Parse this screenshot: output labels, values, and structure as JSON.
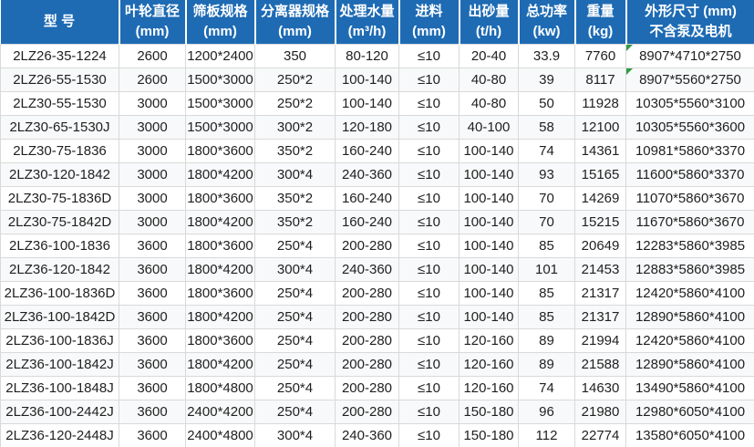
{
  "colors": {
    "header_bg": "#1e6bb4",
    "header_text": "#ffffff",
    "grid_line": "#d9d9d9",
    "body_text": "#1f1f1f",
    "row_alt_bg": "#f8f9fa",
    "comment_marker_green": "#2f9e44"
  },
  "table": {
    "columns": [
      {
        "id": "model",
        "line1": "型 号",
        "line2": ""
      },
      {
        "id": "impeller-diameter",
        "line1": "叶轮直径",
        "line2": "(mm)"
      },
      {
        "id": "screen-plate-size",
        "line1": "筛板规格",
        "line2": "(mm)"
      },
      {
        "id": "separator-size",
        "line1": "分离器规格",
        "line2": "(mm)"
      },
      {
        "id": "water-capacity",
        "line1": "处理水量",
        "line2": "(m³/h)"
      },
      {
        "id": "feed-size",
        "line1": "进料",
        "line2": "(mm)"
      },
      {
        "id": "sand-output",
        "line1": "出砂量",
        "line2": "(t/h)"
      },
      {
        "id": "total-power",
        "line1": "总功率",
        "line2": "(kw)"
      },
      {
        "id": "weight",
        "line1": "重量",
        "line2": "(kg)"
      },
      {
        "id": "overall-dimensions",
        "line1": "外形尺寸 (mm)",
        "line2": "不含泵及电机"
      }
    ],
    "rows": [
      [
        "2LZ26-35-1224",
        "2600",
        "1200*2400",
        "350",
        "80-120",
        "≤10",
        "20-40",
        "33.9",
        "7760",
        "8907*4710*2750"
      ],
      [
        "2LZ26-55-1530",
        "2600",
        "1500*3000",
        "250*2",
        "100-140",
        "≤10",
        "40-80",
        "39",
        "8117",
        "8907*5560*2750"
      ],
      [
        "2LZ30-55-1530",
        "3000",
        "1500*3000",
        "250*2",
        "100-140",
        "≤10",
        "40-80",
        "50",
        "11928",
        "10305*5560*3100"
      ],
      [
        "2LZ30-65-1530J",
        "3000",
        "1500*3000",
        "300*2",
        "120-180",
        "≤10",
        "40-100",
        "58",
        "12100",
        "10305*5560*3600"
      ],
      [
        "2LZ30-75-1836",
        "3000",
        "1800*3600",
        "350*2",
        "160-240",
        "≤10",
        "100-140",
        "74",
        "14361",
        "10981*5860*3370"
      ],
      [
        "2LZ30-120-1842",
        "3000",
        "1800*4200",
        "300*4",
        "240-360",
        "≤10",
        "100-140",
        "93",
        "15165",
        "11600*5860*3370"
      ],
      [
        "2LZ30-75-1836D",
        "3000",
        "1800*3600",
        "350*2",
        "160-240",
        "≤10",
        "100-140",
        "70",
        "14269",
        "11070*5860*3670"
      ],
      [
        "2LZ30-75-1842D",
        "3000",
        "1800*4200",
        "350*2",
        "160-240",
        "≤10",
        "100-140",
        "70",
        "15215",
        "11670*5860*3670"
      ],
      [
        "2LZ36-100-1836",
        "3600",
        "1800*3600",
        "250*4",
        "200-280",
        "≤10",
        "100-140",
        "85",
        "20649",
        "12283*5860*3985"
      ],
      [
        "2LZ36-120-1842",
        "3600",
        "1800*4200",
        "300*4",
        "240-360",
        "≤10",
        "100-140",
        "101",
        "21453",
        "12883*5860*3985"
      ],
      [
        "2LZ36-100-1836D",
        "3600",
        "1800*3600",
        "250*4",
        "200-280",
        "≤10",
        "100-140",
        "85",
        "21317",
        "12420*5860*4100"
      ],
      [
        "2LZ36-100-1842D",
        "3600",
        "1800*4200",
        "250*4",
        "200-280",
        "≤10",
        "100-140",
        "85",
        "21317",
        "12890*5860*4100"
      ],
      [
        "2LZ36-100-1836J",
        "3600",
        "1800*3600",
        "250*4",
        "200-280",
        "≤10",
        "120-160",
        "89",
        "21994",
        "12420*5860*4100"
      ],
      [
        "2LZ36-100-1842J",
        "3600",
        "1800*4200",
        "250*4",
        "200-280",
        "≤10",
        "120-160",
        "89",
        "21588",
        "12890*5860*4100"
      ],
      [
        "2LZ36-100-1848J",
        "3600",
        "1800*4800",
        "250*4",
        "200-280",
        "≤10",
        "120-160",
        "74",
        "14630",
        "13490*5860*4100"
      ],
      [
        "2LZ36-100-2442J",
        "3600",
        "2400*4200",
        "250*4",
        "200-280",
        "≤10",
        "150-180",
        "96",
        "21980",
        "12980*6050*4100"
      ],
      [
        "2LZ36-120-2448J",
        "3600",
        "2400*4800",
        "300*4",
        "240-360",
        "≤10",
        "150-180",
        "112",
        "22774",
        "13580*6050*4100"
      ]
    ],
    "comment_marker_rows": [
      0,
      1
    ],
    "comment_marker_column": 9
  }
}
